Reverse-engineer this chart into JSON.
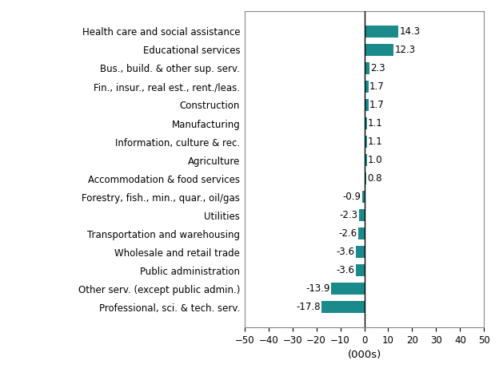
{
  "categories": [
    "Professional, sci. & tech. serv.",
    "Other serv. (except public admin.)",
    "Public administration",
    "Wholesale and retail trade",
    "Transportation and warehousing",
    "Utilities",
    "Forestry, fish., min., quar., oil/gas",
    "Accommodation & food services",
    "Agriculture",
    "Information, culture & rec.",
    "Manufacturing",
    "Construction",
    "Fin., insur., real est., rent./leas.",
    "Bus., build. & other sup. serv.",
    "Educational services",
    "Health care and social assistance"
  ],
  "values": [
    -17.8,
    -13.9,
    -3.6,
    -3.6,
    -2.6,
    -2.3,
    -0.9,
    0.8,
    1.0,
    1.1,
    1.1,
    1.7,
    1.7,
    2.3,
    12.3,
    14.3
  ],
  "bar_color": "#1a8a8a",
  "xlabel": "(000s)",
  "xlim": [
    -50,
    50
  ],
  "xticks": [
    -50,
    -40,
    -30,
    -20,
    -10,
    0,
    10,
    20,
    30,
    40,
    50
  ],
  "label_fontsize": 8.5,
  "xlabel_fontsize": 9.5,
  "tick_fontsize": 8.5,
  "background_color": "#ffffff",
  "bar_height": 0.65
}
